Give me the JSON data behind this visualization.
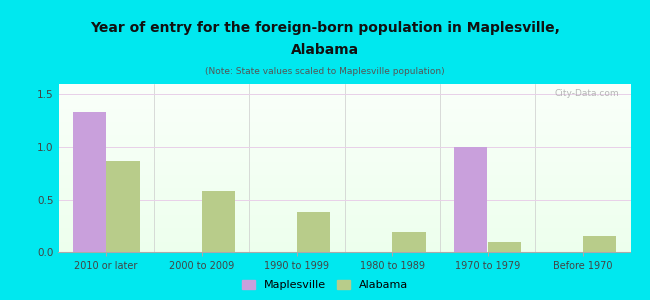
{
  "title_line1": "Year of entry for the foreign-born population in Maplesville,",
  "title_line2": "Alabama",
  "subtitle": "(Note: State values scaled to Maplesville population)",
  "categories": [
    "2010 or later",
    "2000 to 2009",
    "1990 to 1999",
    "1980 to 1989",
    "1970 to 1979",
    "Before 1970"
  ],
  "maplesville_values": [
    1.33,
    0.0,
    0.0,
    0.0,
    1.0,
    0.0
  ],
  "alabama_values": [
    0.87,
    0.58,
    0.38,
    0.19,
    0.1,
    0.15
  ],
  "maplesville_color": "#c9a0dc",
  "alabama_color": "#b8cc8a",
  "background_color": "#00e8ef",
  "ylim": [
    0,
    1.6
  ],
  "yticks": [
    0,
    0.5,
    1.0,
    1.5
  ],
  "bar_width": 0.35,
  "watermark": "City-Data.com",
  "legend_labels": [
    "Maplesville",
    "Alabama"
  ],
  "grid_color": "#e8d0e8",
  "title_color": "#111111",
  "tick_color": "#444444"
}
